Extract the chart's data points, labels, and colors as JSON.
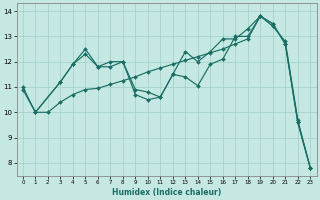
{
  "xlabel": "Humidex (Indice chaleur)",
  "bg_color": "#c5e8e3",
  "line_color": "#1a6e64",
  "grid_color": "#a0cfc8",
  "xlim": [
    -0.5,
    23.5
  ],
  "ylim": [
    7.5,
    14.3
  ],
  "xticks": [
    0,
    1,
    2,
    3,
    4,
    5,
    6,
    7,
    8,
    9,
    10,
    11,
    12,
    13,
    14,
    15,
    16,
    17,
    18,
    19,
    20,
    21,
    22,
    23
  ],
  "yticks": [
    8,
    9,
    10,
    11,
    12,
    13,
    14
  ],
  "s1x": [
    0,
    1,
    3,
    4,
    5,
    6,
    7,
    8,
    9,
    10,
    11,
    12,
    13,
    14,
    15,
    16,
    17,
    18,
    19,
    20,
    21,
    22,
    23
  ],
  "s1y": [
    10.9,
    10.0,
    11.2,
    11.9,
    12.5,
    11.8,
    12.0,
    12.0,
    10.9,
    10.8,
    10.6,
    11.5,
    11.4,
    11.05,
    11.9,
    12.1,
    13.0,
    13.0,
    13.8,
    13.4,
    12.8,
    9.7,
    7.8
  ],
  "s2x": [
    0,
    1,
    3,
    4,
    5,
    6,
    7,
    8,
    9,
    10,
    11,
    12,
    13,
    14,
    15,
    16,
    17,
    18,
    19,
    20,
    21,
    22,
    23
  ],
  "s2y": [
    11.0,
    10.0,
    11.2,
    11.9,
    12.3,
    11.8,
    11.8,
    12.0,
    10.7,
    10.5,
    10.6,
    11.5,
    12.4,
    12.0,
    12.4,
    12.9,
    12.9,
    13.3,
    13.8,
    13.5,
    12.7,
    9.6,
    7.8
  ],
  "s3x": [
    1,
    2,
    3,
    4,
    5,
    6,
    7,
    8,
    9,
    10,
    11,
    12,
    13,
    14,
    15,
    16,
    17,
    18,
    19,
    20,
    21,
    22,
    23
  ],
  "s3y": [
    10.0,
    10.0,
    10.4,
    10.7,
    10.9,
    10.95,
    11.1,
    11.25,
    11.4,
    11.6,
    11.75,
    11.9,
    12.05,
    12.2,
    12.35,
    12.5,
    12.7,
    12.9,
    13.8,
    13.5,
    12.7,
    9.6,
    7.8
  ]
}
